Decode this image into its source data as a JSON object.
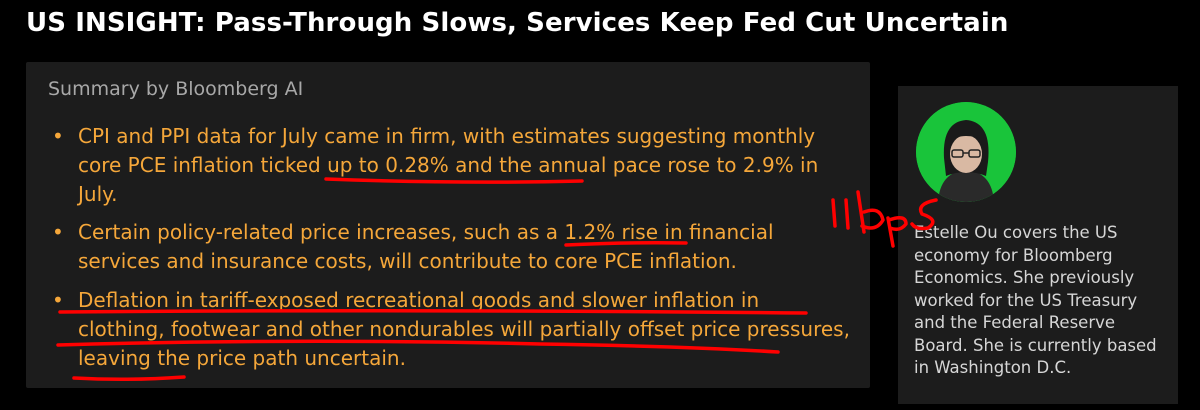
{
  "headline": "US INSIGHT: Pass-Through Slows, Services Keep Fed Cut Uncertain",
  "summary": {
    "title": "Summary by Bloomberg AI",
    "bullets": [
      "CPI and PPI data for July came in firm, with estimates suggesting monthly core PCE inflation ticked up to 0.28% and the annual pace rose to 2.9% in July.",
      "Certain policy-related price increases, such as a 1.2% rise in financial services and insurance costs, will contribute to core PCE inflation.",
      "Deflation in tariff-exposed recreational goods and slower inflation in clothing, footwear and other nondurables will partially offset price pressures, leaving the price path uncertain."
    ]
  },
  "author": {
    "bio": "Estelle Ou covers the US economy for Bloomberg Economics. She previously worked for the US Treasury and the Federal Reserve Board. She is currently based in Washington D.C."
  },
  "annotation": {
    "handwritten_note": "11 bps",
    "ink_color": "#ff0000"
  },
  "colors": {
    "background": "#000000",
    "panel": "#1c1c1c",
    "bullet_text": "#f5a73a",
    "summary_label": "#a8a8a8",
    "headline": "#ffffff",
    "avatar_bg": "#19c43a"
  }
}
